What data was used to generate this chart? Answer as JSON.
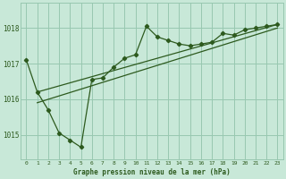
{
  "bg_color": "#c8e8d8",
  "grid_color": "#98c8b0",
  "line_color": "#2d5a1e",
  "marker_color": "#2d5a1e",
  "title": "Graphe pression niveau de la mer (hPa)",
  "xlim": [
    -0.5,
    23.5
  ],
  "ylim": [
    1014.3,
    1018.7
  ],
  "yticks": [
    1015,
    1016,
    1017,
    1018
  ],
  "xticks": [
    0,
    1,
    2,
    3,
    4,
    5,
    6,
    7,
    8,
    9,
    10,
    11,
    12,
    13,
    14,
    15,
    16,
    17,
    18,
    19,
    20,
    21,
    22,
    23
  ],
  "series1_x": [
    0,
    1,
    2,
    3,
    4,
    5,
    6,
    7,
    8,
    9,
    10,
    11,
    12,
    13,
    14,
    15,
    16,
    17,
    18,
    19,
    20,
    21,
    22,
    23
  ],
  "series1_y": [
    1017.1,
    1016.2,
    1015.7,
    1015.05,
    1014.85,
    1014.65,
    1016.55,
    1016.6,
    1016.9,
    1017.15,
    1017.25,
    1018.05,
    1017.75,
    1017.65,
    1017.55,
    1017.5,
    1017.55,
    1017.6,
    1017.85,
    1017.8,
    1017.95,
    1018.0,
    1018.05,
    1018.1
  ],
  "line2_x": [
    1,
    23
  ],
  "line2_y": [
    1016.2,
    1018.1
  ],
  "line3_x": [
    1,
    23
  ],
  "line3_y": [
    1015.9,
    1018.0
  ]
}
